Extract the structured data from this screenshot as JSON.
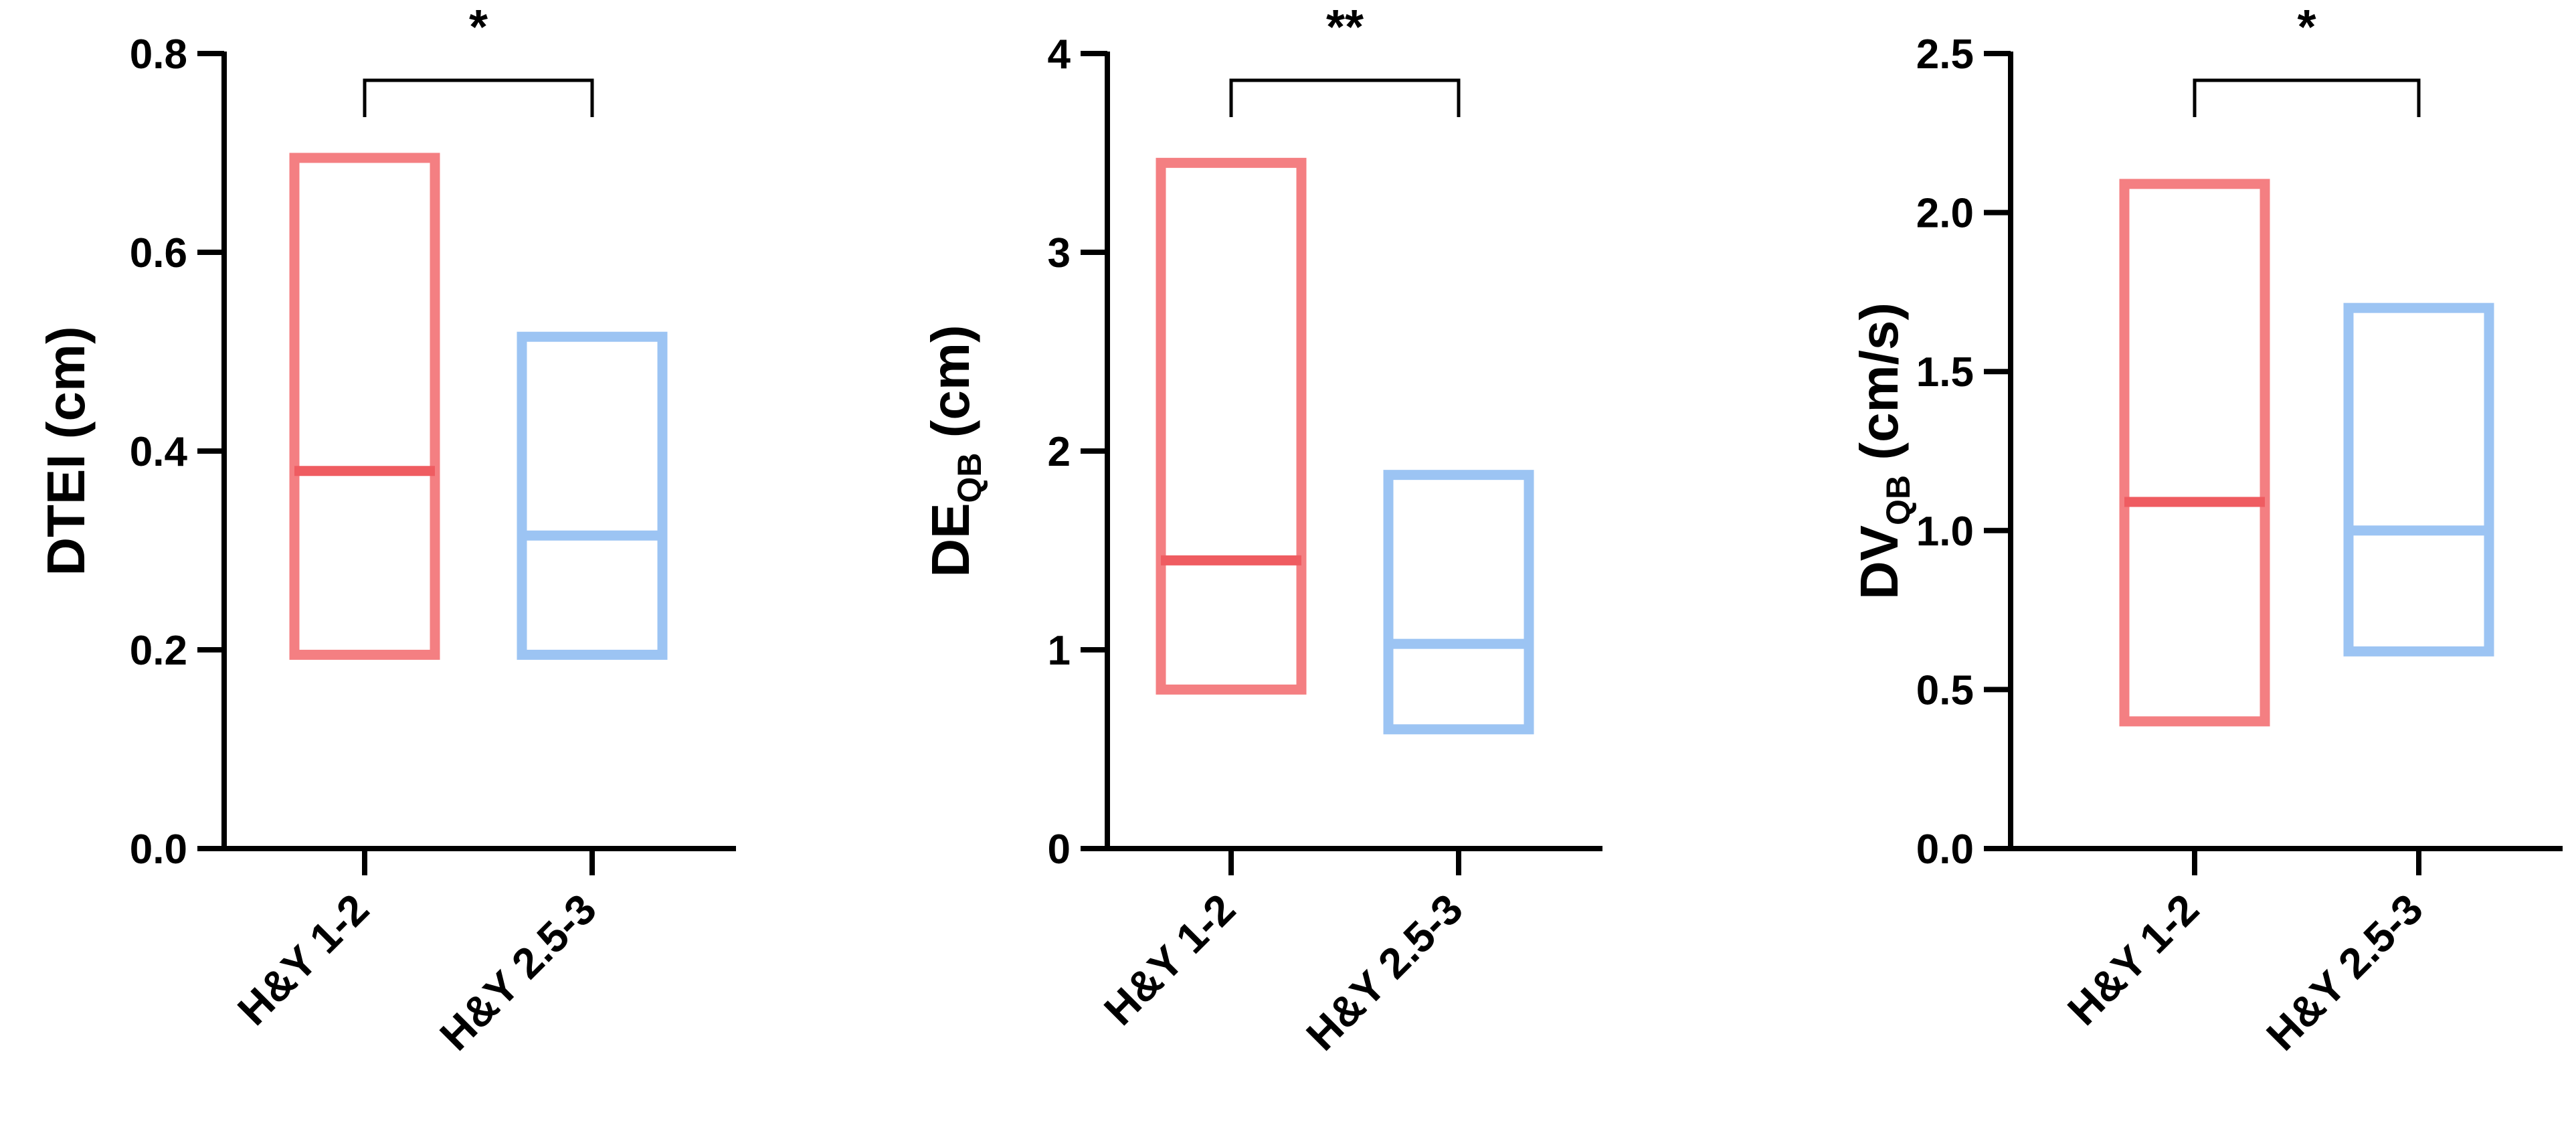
{
  "chart_data": [
    {
      "type": "floating-bar",
      "ylabel_main": "DTEI (cm)",
      "ylabel_sub": "",
      "ylabel_tail": "",
      "ylim": [
        0,
        0.8
      ],
      "yticks": [
        0.0,
        0.2,
        0.4,
        0.6,
        0.8
      ],
      "ytick_labels": [
        "0.0",
        "0.2",
        "0.4",
        "0.6",
        "0.8"
      ],
      "categories": [
        "H&Y 1-2",
        "H&Y 2.5-3"
      ],
      "series": [
        {
          "min": 0.195,
          "max": 0.695,
          "median": 0.38
        },
        {
          "min": 0.195,
          "max": 0.515,
          "median": 0.315
        }
      ],
      "significance": "*"
    },
    {
      "type": "floating-bar",
      "ylabel_main": "DE",
      "ylabel_sub": "QB",
      "ylabel_tail": " (cm)",
      "ylim": [
        0,
        4
      ],
      "yticks": [
        0,
        1,
        2,
        3,
        4
      ],
      "ytick_labels": [
        "0",
        "1",
        "2",
        "3",
        "4"
      ],
      "categories": [
        "H&Y 1-2",
        "H&Y 2.5-3"
      ],
      "series": [
        {
          "min": 0.8,
          "max": 3.45,
          "median": 1.45
        },
        {
          "min": 0.6,
          "max": 1.88,
          "median": 1.03
        }
      ],
      "significance": "**"
    },
    {
      "type": "floating-bar",
      "ylabel_main": "DV",
      "ylabel_sub": "QB",
      "ylabel_tail": " (cm/s)",
      "ylim": [
        0,
        2.5
      ],
      "yticks": [
        0.0,
        0.5,
        1.0,
        1.5,
        2.0,
        2.5
      ],
      "ytick_labels": [
        "0.0",
        "0.5",
        "1.0",
        "1.5",
        "2.0",
        "2.5"
      ],
      "categories": [
        "H&Y 1-2",
        "H&Y 2.5-3"
      ],
      "series": [
        {
          "min": 0.4,
          "max": 2.09,
          "median": 1.09
        },
        {
          "min": 0.62,
          "max": 1.7,
          "median": 1.0
        }
      ],
      "significance": "*"
    }
  ],
  "colors": {
    "group1": "#f47f82",
    "group1_median": "#ef5c61",
    "group2": "#9cc4f3",
    "axis": "#000000"
  }
}
